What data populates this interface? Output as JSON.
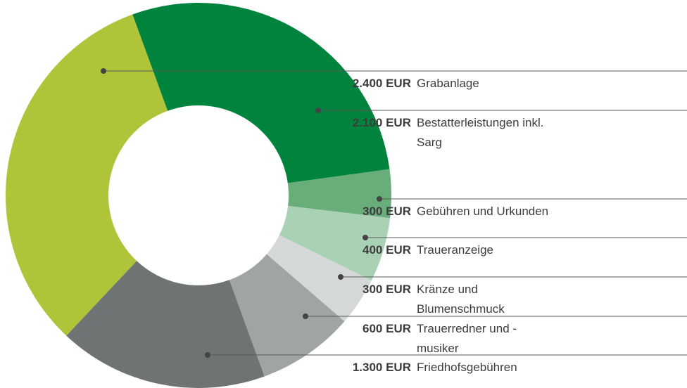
{
  "chart_data": {
    "type": "donut",
    "categories": [
      "Grabanlage",
      "Bestatterleistungen inkl. Sarg",
      "Gebühren und Urkunden",
      "Traueranzeige",
      "Kränze und Blumenschmuck",
      "Trauerredner und -musiker",
      "Friedhofsgebühren"
    ],
    "values": [
      2400,
      2100,
      300,
      400,
      300,
      600,
      1300
    ],
    "value_labels": [
      "2.400 EUR",
      "2.100 EUR",
      "300 EUR",
      "400 EUR",
      "300 EUR",
      "600 EUR",
      "1.300 EUR"
    ],
    "colors": [
      "#afc438",
      "#00843d",
      "#69ad7b",
      "#a9d1b3",
      "#d5d8d9",
      "#9fa4a5",
      "#6e7374"
    ]
  }
}
